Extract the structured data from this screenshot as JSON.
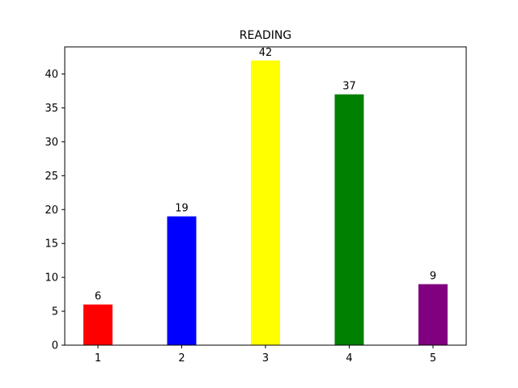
{
  "chart_data": {
    "type": "bar",
    "title": "READING",
    "xlabel": "",
    "ylabel": "",
    "categories": [
      "1",
      "2",
      "3",
      "4",
      "5"
    ],
    "values": [
      6,
      19,
      42,
      37,
      9
    ],
    "data_labels": [
      "6",
      "19",
      "42",
      "37",
      "9"
    ],
    "bar_colors": [
      "#ff0000",
      "#0000ff",
      "#ffff00",
      "#008000",
      "#800080"
    ],
    "ylim": [
      0,
      44
    ],
    "yticks": [
      0,
      5,
      10,
      15,
      20,
      25,
      30,
      35,
      40
    ],
    "grid": false,
    "legend": "none"
  }
}
